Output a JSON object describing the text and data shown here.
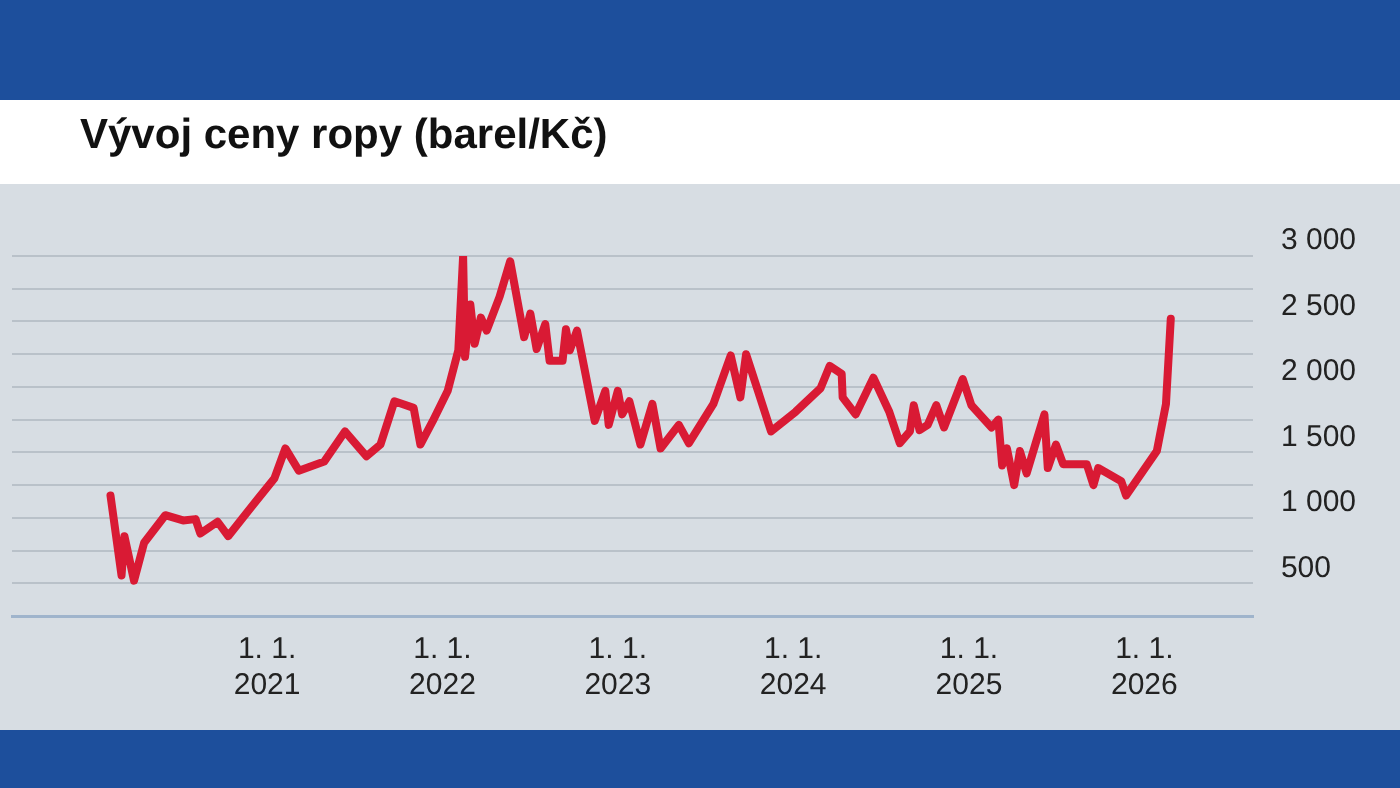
{
  "chart_data": {
    "type": "line",
    "title": "Vývoj ceny ropy (barel/Kč)",
    "xlim": [
      "2019-07-20",
      "2026-08-15"
    ],
    "xticks": [
      {
        "value": "2021-01-01",
        "label": "1. 1.\n2021"
      },
      {
        "value": "2022-01-01",
        "label": "1. 1.\n2022"
      },
      {
        "value": "2023-01-01",
        "label": "1. 1.\n2023"
      },
      {
        "value": "2024-01-01",
        "label": "1. 1.\n2024"
      },
      {
        "value": "2025-01-01",
        "label": "1. 1.\n2025"
      },
      {
        "value": "2026-01-01",
        "label": "1. 1.\n2026"
      }
    ],
    "ylim": [
      250,
      3000
    ],
    "yticks": [
      {
        "value": 250,
        "label": null
      },
      500,
      {
        "value": 750,
        "label": null
      },
      {
        "value": 1000,
        "label": "1 000"
      },
      {
        "value": 1250,
        "label": null
      },
      {
        "value": 1500,
        "label": "1 500"
      },
      {
        "value": 1750,
        "label": null
      },
      {
        "value": 2000,
        "label": "2 000"
      },
      {
        "value": 2250,
        "label": null
      },
      {
        "value": 2500,
        "label": "2 500"
      },
      {
        "value": 2750,
        "label": null
      },
      {
        "value": 3000,
        "label": "3 000"
      }
    ],
    "grid": "y",
    "legend": false,
    "marker": "none",
    "line_style": "solid",
    "series": [
      {
        "color": "#d91a34",
        "x": [
          "2020-02-10",
          "2020-03-04",
          "2020-03-10",
          "2020-03-30",
          "2020-04-20",
          "2020-06-03",
          "2020-07-10",
          "2020-08-05",
          "2020-08-15",
          "2020-09-20",
          "2020-10-12",
          "2020-12-03",
          "2021-01-16",
          "2021-02-08",
          "2021-03-08",
          "2021-04-30",
          "2021-06-12",
          "2021-07-27",
          "2021-08-25",
          "2021-09-23",
          "2021-11-02",
          "2021-11-16",
          "2021-12-12",
          "2022-01-12",
          "2022-02-03",
          "2022-02-13",
          "2022-02-17",
          "2022-02-28",
          "2022-03-09",
          "2022-03-22",
          "2022-04-03",
          "2022-04-30",
          "2022-05-22",
          "2022-06-20",
          "2022-07-03",
          "2022-07-16",
          "2022-08-03",
          "2022-08-12",
          "2022-09-08",
          "2022-09-15",
          "2022-09-23",
          "2022-10-08",
          "2022-11-14",
          "2022-12-06",
          "2022-12-13",
          "2023-01-01",
          "2023-01-10",
          "2023-01-25",
          "2023-02-17",
          "2023-03-14",
          "2023-03-31",
          "2023-05-08",
          "2023-05-29",
          "2023-07-19",
          "2023-08-24",
          "2023-09-13",
          "2023-09-25",
          "2023-11-16",
          "2024-01-06",
          "2024-02-27",
          "2024-03-17",
          "2024-04-11",
          "2024-04-13",
          "2024-05-10",
          "2024-06-16",
          "2024-07-19",
          "2024-08-10",
          "2024-08-31",
          "2024-09-08",
          "2024-09-20",
          "2024-10-07",
          "2024-10-25",
          "2024-11-10",
          "2024-12-19",
          "2025-01-06",
          "2025-02-17",
          "2025-03-03",
          "2025-03-11",
          "2025-03-21",
          "2025-04-05",
          "2025-04-17",
          "2025-05-01",
          "2025-05-19",
          "2025-06-07",
          "2025-06-14",
          "2025-07-01",
          "2025-07-16",
          "2025-09-03",
          "2025-09-17",
          "2025-09-27",
          "2025-11-14",
          "2025-11-24",
          "2026-01-27",
          "2026-02-15",
          "2026-02-25"
        ],
        "values": [
          1170,
          560,
          860,
          520,
          810,
          1020,
          980,
          990,
          880,
          970,
          860,
          1100,
          1300,
          1530,
          1360,
          1430,
          1660,
          1470,
          1560,
          1890,
          1840,
          1560,
          1740,
          1970,
          2280,
          3000,
          2230,
          2630,
          2330,
          2530,
          2430,
          2690,
          2960,
          2380,
          2560,
          2290,
          2480,
          2200,
          2200,
          2440,
          2280,
          2430,
          1740,
          1970,
          1710,
          1970,
          1790,
          1890,
          1560,
          1870,
          1530,
          1710,
          1570,
          1870,
          2240,
          1920,
          2250,
          1660,
          1810,
          1990,
          2160,
          2100,
          1920,
          1790,
          2070,
          1810,
          1570,
          1660,
          1860,
          1670,
          1710,
          1860,
          1690,
          2060,
          1860,
          1690,
          1750,
          1400,
          1530,
          1250,
          1510,
          1340,
          1560,
          1790,
          1380,
          1560,
          1410,
          1410,
          1250,
          1380,
          1280,
          1170,
          1510,
          1870,
          2520
        ]
      }
    ]
  }
}
